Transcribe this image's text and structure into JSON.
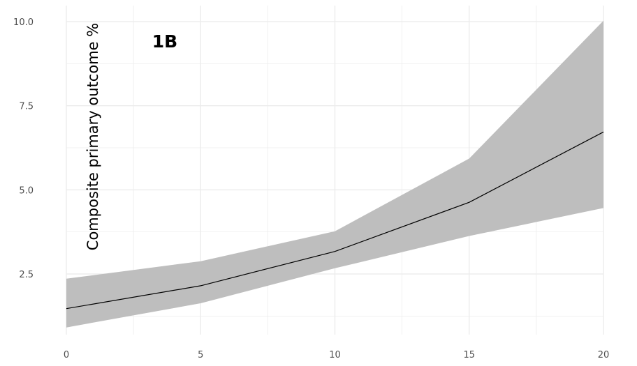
{
  "chart_data": {
    "type": "line",
    "panel_label": "1B",
    "title": "",
    "xlabel": "",
    "ylabel": "Composite primary outcome %",
    "xlim": [
      0,
      20
    ],
    "ylim": [
      0.9,
      10.0
    ],
    "x_ticks": [
      0,
      5,
      10,
      15,
      20
    ],
    "x_tick_labels": [
      "0",
      "5",
      "10",
      "15",
      "20"
    ],
    "y_ticks": [
      2.5,
      5.0,
      7.5,
      10.0
    ],
    "y_tick_labels": [
      "2.5",
      "5.0",
      "7.5",
      "10.0"
    ],
    "grid": true,
    "x": [
      0,
      5,
      10,
      15,
      20
    ],
    "series": [
      {
        "values": [
          1.47,
          2.15,
          3.17,
          4.63,
          6.72
        ],
        "ci_lower": [
          0.91,
          1.63,
          2.67,
          3.63,
          4.46
        ],
        "ci_upper": [
          2.36,
          2.88,
          3.77,
          5.93,
          10.03
        ]
      }
    ],
    "colors": {
      "line": "#000000",
      "ribbon": "#bebebe",
      "grid": "#ebebeb"
    }
  }
}
